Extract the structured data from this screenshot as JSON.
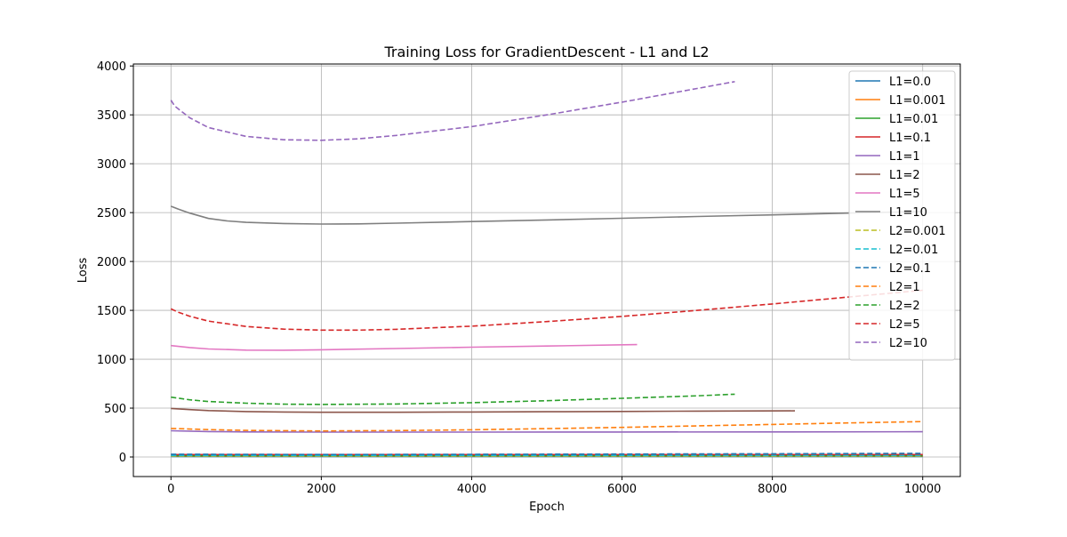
{
  "chart_data": {
    "type": "line",
    "title": "Training Loss for GradientDescent - L1 and L2",
    "xlabel": "Epoch",
    "ylabel": "Loss",
    "xlim": [
      -500,
      10500
    ],
    "ylim": [
      -200,
      4020
    ],
    "xticks": [
      0,
      2000,
      4000,
      6000,
      8000,
      10000
    ],
    "yticks": [
      0,
      500,
      1000,
      1500,
      2000,
      2500,
      3000,
      3500,
      4000
    ],
    "grid": true,
    "legend_position": "top-right",
    "series": [
      {
        "name": "L1=0.0",
        "color": "#1f77b4",
        "dash": "solid",
        "x": [
          0,
          10000
        ],
        "y": [
          5,
          5
        ]
      },
      {
        "name": "L1=0.001",
        "color": "#ff7f0e",
        "dash": "solid",
        "x": [
          0,
          10000
        ],
        "y": [
          8,
          8
        ]
      },
      {
        "name": "L1=0.01",
        "color": "#2ca02c",
        "dash": "solid",
        "x": [
          0,
          10000
        ],
        "y": [
          12,
          12
        ]
      },
      {
        "name": "L1=0.1",
        "color": "#d62728",
        "dash": "solid",
        "x": [
          0,
          10000
        ],
        "y": [
          25,
          25
        ]
      },
      {
        "name": "L1=1",
        "color": "#9467bd",
        "dash": "solid",
        "x": [
          0,
          500,
          1000,
          2000,
          4000,
          6000,
          8000,
          10000
        ],
        "y": [
          268,
          260,
          257,
          255,
          255,
          256,
          257,
          258
        ]
      },
      {
        "name": "L1=2",
        "color": "#8c564b",
        "dash": "solid",
        "x": [
          0,
          250,
          500,
          1000,
          1500,
          2000,
          3000,
          4000,
          5000,
          6000,
          7000,
          8300
        ],
        "y": [
          497,
          485,
          475,
          465,
          460,
          458,
          458,
          460,
          463,
          466,
          469,
          472
        ]
      },
      {
        "name": "L1=5",
        "color": "#e377c2",
        "dash": "solid",
        "x": [
          0,
          250,
          500,
          1000,
          1500,
          2000,
          3000,
          4000,
          5000,
          6200
        ],
        "y": [
          1140,
          1120,
          1105,
          1093,
          1092,
          1097,
          1110,
          1123,
          1135,
          1150
        ]
      },
      {
        "name": "L1=10",
        "color": "#7f7f7f",
        "dash": "solid",
        "x": [
          0,
          100,
          250,
          500,
          750,
          1000,
          1500,
          2000,
          2500,
          3000,
          4000,
          5000,
          6000,
          7000,
          8000,
          9000,
          10000
        ],
        "y": [
          2565,
          2535,
          2495,
          2440,
          2415,
          2400,
          2388,
          2383,
          2385,
          2392,
          2408,
          2425,
          2442,
          2460,
          2477,
          2495,
          2512
        ]
      },
      {
        "name": "L2=0.001",
        "color": "#bcbd22",
        "dash": "dashed",
        "x": [
          0,
          10000
        ],
        "y": [
          10,
          10
        ]
      },
      {
        "name": "L2=0.01",
        "color": "#17becf",
        "dash": "dashed",
        "x": [
          0,
          10000
        ],
        "y": [
          15,
          15
        ]
      },
      {
        "name": "L2=0.1",
        "color": "#1f77b4",
        "dash": "dashed",
        "x": [
          0,
          2000,
          4000,
          6000,
          8000,
          10000
        ],
        "y": [
          28,
          26,
          27,
          30,
          33,
          37
        ]
      },
      {
        "name": "L2=1",
        "color": "#ff7f0e",
        "dash": "dashed",
        "x": [
          0,
          500,
          1000,
          2000,
          3000,
          4000,
          5000,
          6000,
          7000,
          8000,
          9000,
          10000
        ],
        "y": [
          292,
          280,
          272,
          267,
          270,
          278,
          290,
          303,
          318,
          333,
          348,
          362
        ]
      },
      {
        "name": "L2=2",
        "color": "#2ca02c",
        "dash": "dashed",
        "x": [
          0,
          250,
          500,
          1000,
          1500,
          2000,
          3000,
          4000,
          5000,
          6000,
          7000,
          7500
        ],
        "y": [
          612,
          585,
          568,
          550,
          540,
          538,
          542,
          556,
          576,
          600,
          626,
          642
        ]
      },
      {
        "name": "L2=5",
        "color": "#d62728",
        "dash": "dashed",
        "x": [
          0,
          100,
          250,
          500,
          1000,
          1500,
          2000,
          2500,
          3000,
          4000,
          5000,
          6000,
          7000,
          8000,
          9000,
          10000
        ],
        "y": [
          1515,
          1480,
          1440,
          1390,
          1335,
          1308,
          1298,
          1298,
          1306,
          1338,
          1385,
          1438,
          1500,
          1565,
          1635,
          1705
        ]
      },
      {
        "name": "L2=10",
        "color": "#9467bd",
        "dash": "dashed",
        "x": [
          0,
          50,
          100,
          250,
          500,
          1000,
          1500,
          2000,
          2500,
          3000,
          4000,
          5000,
          6000,
          7000,
          7500
        ],
        "y": [
          3650,
          3590,
          3560,
          3470,
          3370,
          3280,
          3245,
          3240,
          3255,
          3290,
          3380,
          3500,
          3630,
          3770,
          3840
        ]
      }
    ]
  }
}
